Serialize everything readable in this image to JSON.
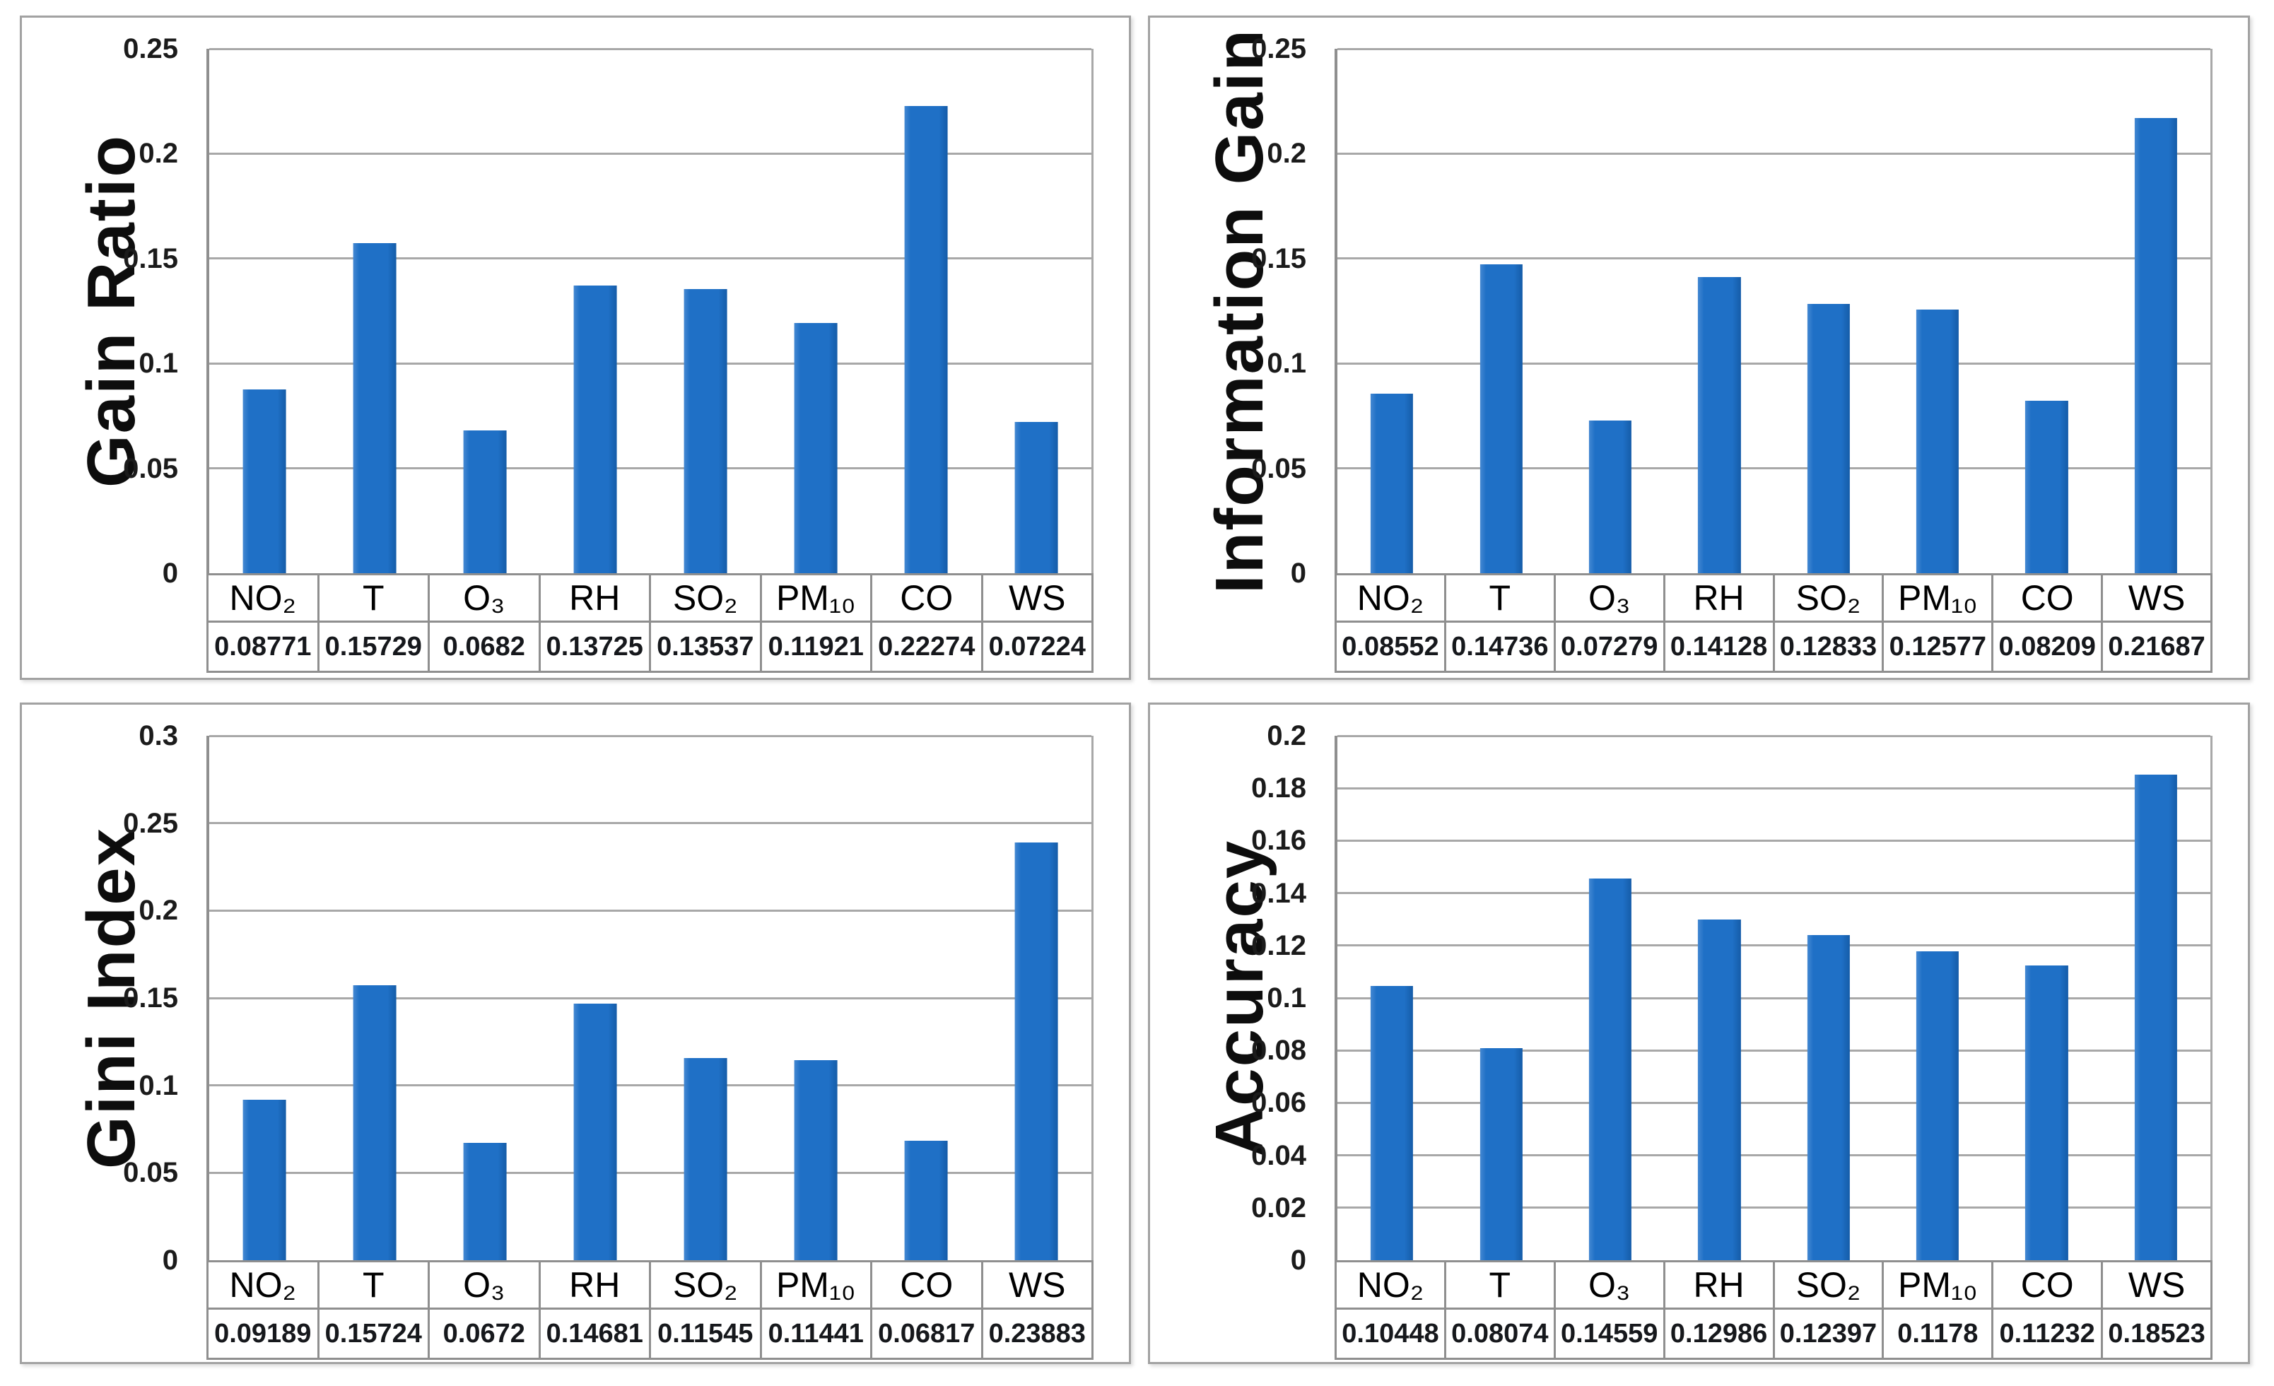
{
  "style": {
    "bar_color": "#1f70c6",
    "bar_edge_light": "#4488d2",
    "bar_edge_dark": "#155ca8",
    "grid_color": "#a8a8a8",
    "axis_color": "#8f8f8f",
    "table_border_color": "#8f8f8f",
    "panel_border_color": "#a2a2a2"
  },
  "chart_data": [
    {
      "type": "bar",
      "title": "Gain Ratio",
      "xlabel": "",
      "ylabel": "Gain Ratio",
      "categories": [
        "NO₂",
        "T",
        "O₃",
        "RH",
        "SO₂",
        "PM₁₀",
        "CO",
        "WS"
      ],
      "values": [
        0.08771,
        0.15729,
        0.0682,
        0.13725,
        0.13537,
        0.11921,
        0.22274,
        0.07224
      ],
      "value_labels": [
        "0.08771",
        "0.15729",
        "0.0682",
        "0.13725",
        "0.13537",
        "0.11921",
        "0.22274",
        "0.07224"
      ],
      "ylim": [
        0,
        0.25
      ],
      "ytick_labels": [
        "0.25",
        "0.2",
        "0.15",
        "0.1",
        "0.05",
        "0"
      ],
      "grid": true,
      "legend": false,
      "position": "top-left"
    },
    {
      "type": "bar",
      "title": "Information Gain",
      "xlabel": "",
      "ylabel": "Information Gain",
      "categories": [
        "NO₂",
        "T",
        "O₃",
        "RH",
        "SO₂",
        "PM₁₀",
        "CO",
        "WS"
      ],
      "values": [
        0.08552,
        0.14736,
        0.07279,
        0.14128,
        0.12833,
        0.12577,
        0.08209,
        0.21687
      ],
      "value_labels": [
        "0.08552",
        "0.14736",
        "0.07279",
        "0.14128",
        "0.12833",
        "0.12577",
        "0.08209",
        "0.21687"
      ],
      "ylim": [
        0,
        0.25
      ],
      "ytick_labels": [
        "0.25",
        "0.2",
        "0.15",
        "0.1",
        "0.05",
        "0"
      ],
      "grid": true,
      "legend": false,
      "position": "top-right"
    },
    {
      "type": "bar",
      "title": "Gini Index",
      "xlabel": "",
      "ylabel": "Gini Index",
      "categories": [
        "NO₂",
        "T",
        "O₃",
        "RH",
        "SO₂",
        "PM₁₀",
        "CO",
        "WS"
      ],
      "values": [
        0.09189,
        0.15724,
        0.0672,
        0.14681,
        0.11545,
        0.11441,
        0.06817,
        0.23883
      ],
      "value_labels": [
        "0.09189",
        "0.15724",
        "0.0672",
        "0.14681",
        "0.11545",
        "0.11441",
        "0.06817",
        "0.23883"
      ],
      "ylim": [
        0,
        0.3
      ],
      "ytick_labels": [
        "0.3",
        "0.25",
        "0.2",
        "0.15",
        "0.1",
        "0.05",
        "0"
      ],
      "grid": true,
      "legend": false,
      "position": "bottom-left"
    },
    {
      "type": "bar",
      "title": "Accuracy",
      "xlabel": "",
      "ylabel": "Accuracy",
      "categories": [
        "NO₂",
        "T",
        "O₃",
        "RH",
        "SO₂",
        "PM₁₀",
        "CO",
        "WS"
      ],
      "values": [
        0.10448,
        0.08074,
        0.14559,
        0.12986,
        0.12397,
        0.1178,
        0.11232,
        0.18523
      ],
      "value_labels": [
        "0.10448",
        "0.08074",
        "0.14559",
        "0.12986",
        "0.12397",
        "0.1178",
        "0.11232",
        "0.18523"
      ],
      "ylim": [
        0,
        0.2
      ],
      "ytick_labels": [
        "0.2",
        "0.18",
        "0.16",
        "0.14",
        "0.12",
        "0.1",
        "0.08",
        "0.06",
        "0.04",
        "0.02",
        "0"
      ],
      "grid": true,
      "legend": false,
      "position": "bottom-right"
    }
  ]
}
